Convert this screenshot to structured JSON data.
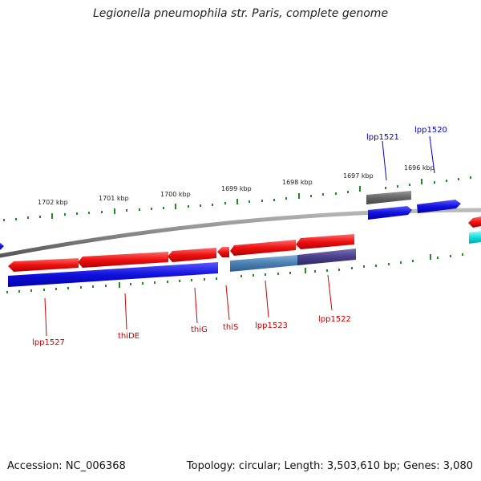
{
  "title": "Legionella pneumophila str. Paris, complete genome",
  "footer": {
    "accession": "Accession: NC_006368",
    "topology": "Topology: circular; Length: 3,503,610 bp; Genes: 3,080"
  },
  "scale_labels": [
    "1702 kbp",
    "1701 kbp",
    "1700 kbp",
    "1699 kbp",
    "1698 kbp",
    "1697 kbp",
    "1696 kbp"
  ],
  "gene_labels": {
    "lpp1521": "lpp1521",
    "lpp1520": "lpp1520",
    "lpp1527": "lpp1527",
    "thiDE": "thiDE",
    "thiG": "thiG",
    "thiS": "thiS",
    "lpp1523": "lpp1523",
    "lpp1522": "lpp1522"
  },
  "colors": {
    "forward_label": "#0000cc",
    "reverse_label": "#cc0000",
    "backbone": "#888888",
    "ticks": "#228822",
    "red_gene": "#ee1111",
    "blue_gene": "#1111dd",
    "grey_gene": "#666666",
    "steel_gene": "#4a7fb0",
    "purple_gene": "#4a3f8a",
    "cyan_gene": "#11dddd"
  }
}
